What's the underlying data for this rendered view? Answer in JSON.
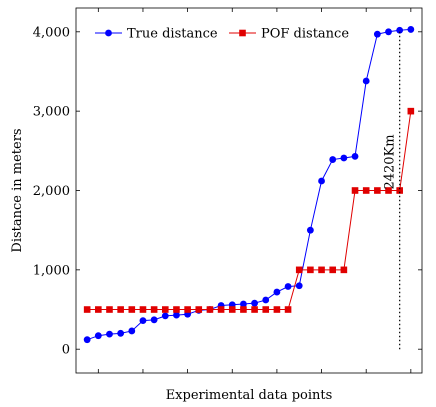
{
  "chart_data": {
    "type": "line",
    "xlabel": "Experimental data points",
    "ylabel": "Distance in meters",
    "ylim": [
      -300,
      4300
    ],
    "xlim": [
      0,
      31
    ],
    "yticks": [
      0,
      1000,
      2000,
      3000,
      4000
    ],
    "ytick_labels": [
      "0",
      "1,000",
      "2,000",
      "3,000",
      "4,000"
    ],
    "x_tick_labels_shown": false,
    "grid": false,
    "legend_position": "top-left",
    "series": [
      {
        "name": "True distance",
        "color": "#0000ff",
        "marker": "circle",
        "x": [
          1,
          2,
          3,
          4,
          5,
          6,
          7,
          8,
          9,
          10,
          11,
          12,
          13,
          14,
          15,
          16,
          17,
          18,
          19,
          20,
          21,
          22,
          23,
          24,
          25,
          26,
          27,
          28,
          29,
          30
        ],
        "y": [
          120,
          170,
          190,
          200,
          230,
          360,
          370,
          420,
          430,
          440,
          490,
          500,
          550,
          560,
          570,
          580,
          620,
          720,
          790,
          800,
          1500,
          2120,
          2390,
          2410,
          2430,
          3380,
          3970,
          4000,
          4020,
          4030
        ]
      },
      {
        "name": "POF distance",
        "color": "#e00000",
        "marker": "square",
        "x": [
          1,
          2,
          3,
          4,
          5,
          6,
          7,
          8,
          9,
          10,
          11,
          12,
          13,
          14,
          15,
          16,
          17,
          18,
          19,
          20,
          21,
          22,
          23,
          24,
          25,
          26,
          27,
          28,
          29,
          30
        ],
        "y": [
          500,
          500,
          500,
          500,
          500,
          500,
          500,
          500,
          500,
          500,
          500,
          500,
          500,
          500,
          500,
          500,
          500,
          500,
          500,
          1000,
          1000,
          1000,
          1000,
          1000,
          2000,
          2000,
          2000,
          2000,
          2000,
          3000
        ]
      }
    ],
    "annotations": [
      {
        "text": "2420Km",
        "x": 29,
        "y_from": 0,
        "y_to": 4000,
        "style": "dotted-vertical-line"
      }
    ]
  }
}
